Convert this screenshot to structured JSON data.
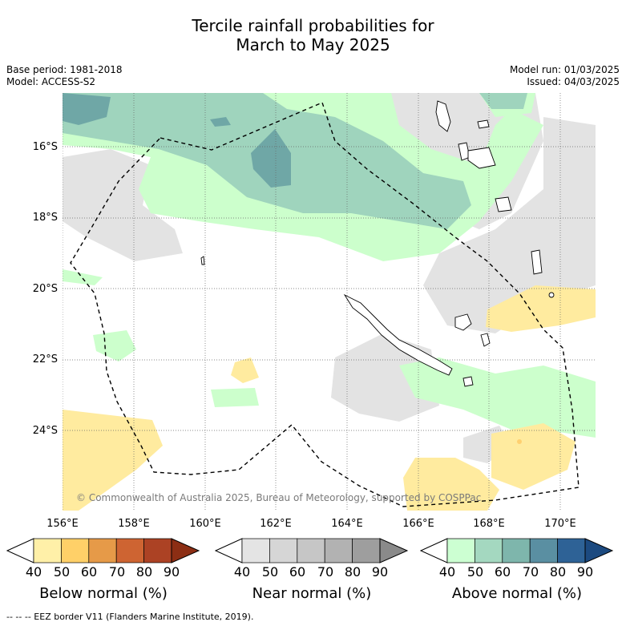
{
  "title_line1": "Tercile rainfall probabilities for",
  "title_line2": "March to May 2025",
  "meta": {
    "base_period": "Base period: 1981-2018",
    "model": "Model: ACCESS-S2",
    "model_run": "Model run: 01/03/2025",
    "issued": "Issued: 04/03/2025"
  },
  "map": {
    "lat_labels": [
      "16°S",
      "18°S",
      "20°S",
      "22°S",
      "24°S"
    ],
    "lon_labels": [
      "156°E",
      "158°E",
      "160°E",
      "162°E",
      "164°E",
      "166°E",
      "168°E",
      "170°E"
    ],
    "credit": "© Commonwealth of Australia 2025, Bureau of Meteorology, supported by COSPPac",
    "colors": {
      "near_light": "#e3e3e3",
      "above_50": "#ccffcc",
      "above_60": "#9fd4bd",
      "above_70": "#6fa7a6",
      "below_50": "#ffeb9f",
      "below_60": "#ffd070"
    }
  },
  "colorbars": [
    {
      "label": "Below normal (%)",
      "ticks": [
        "40",
        "50",
        "60",
        "70",
        "80",
        "90"
      ],
      "colors": [
        "#ffffff",
        "#fff0a8",
        "#ffd068",
        "#e69a48",
        "#ce6432",
        "#ac4224",
        "#8c2e14"
      ]
    },
    {
      "label": "Near normal (%)",
      "ticks": [
        "40",
        "50",
        "60",
        "70",
        "80",
        "90"
      ],
      "colors": [
        "#ffffff",
        "#e4e4e4",
        "#d6d6d6",
        "#c6c6c6",
        "#b2b2b2",
        "#9e9e9e",
        "#8a8a8a"
      ]
    },
    {
      "label": "Above normal (%)",
      "ticks": [
        "40",
        "50",
        "60",
        "70",
        "80",
        "90"
      ],
      "colors": [
        "#ffffff",
        "#ccffd2",
        "#a4d8c0",
        "#7eb6ac",
        "#5a8fa2",
        "#2e6296",
        "#1c4a80"
      ]
    }
  ],
  "footer": "--  --  -- EEZ border V11 (Flanders Marine Institute, 2019)."
}
